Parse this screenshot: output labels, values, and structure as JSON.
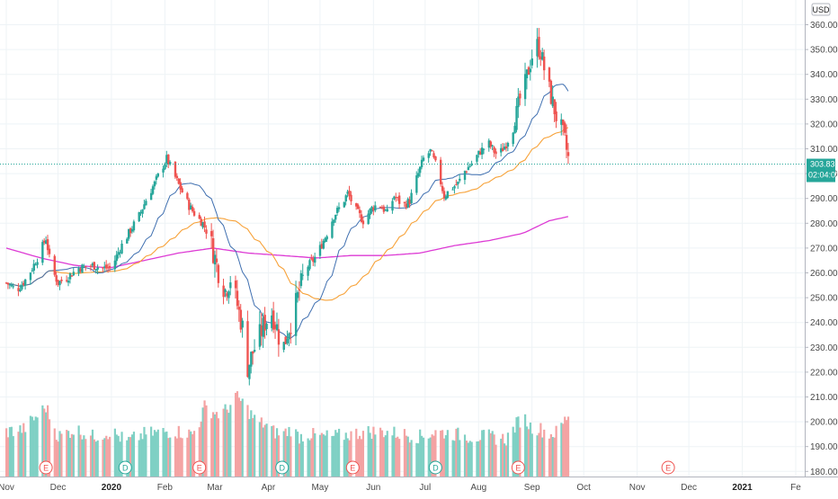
{
  "currency": "USD",
  "last_price": "303.83",
  "countdown": "02:04:01",
  "colors": {
    "up": "#26a69a",
    "down": "#ef5350",
    "vol_up": "#7fd0c4",
    "vol_down": "#f4a3a3",
    "ma_short": "#3f6fb0",
    "ma_mid": "#f7a239",
    "ma_long": "#dd3ad4",
    "grid": "#eef3f6",
    "price_tag": "#26a69a"
  },
  "chart_data": {
    "type": "candlestick",
    "y_axis": {
      "ylim": [
        178,
        364
      ],
      "ticks": [
        "360.00",
        "350.00",
        "340.00",
        "330.00",
        "320.00",
        "310.00",
        "300.00",
        "290.00",
        "280.00",
        "270.00",
        "260.00",
        "250.00",
        "240.00",
        "230.00",
        "220.00",
        "210.00",
        "200.00",
        "190.00",
        "180.00"
      ]
    },
    "x_axis": {
      "labels": [
        {
          "text": "Nov",
          "day": 0,
          "bold": false
        },
        {
          "text": "Dec",
          "day": 30,
          "bold": false
        },
        {
          "text": "2020",
          "day": 61,
          "bold": true
        },
        {
          "text": "Feb",
          "day": 92,
          "bold": false
        },
        {
          "text": "Mar",
          "day": 121,
          "bold": false
        },
        {
          "text": "Apr",
          "day": 152,
          "bold": false
        },
        {
          "text": "May",
          "day": 182,
          "bold": false
        },
        {
          "text": "Jun",
          "day": 213,
          "bold": false
        },
        {
          "text": "Jul",
          "day": 243,
          "bold": false
        },
        {
          "text": "Aug",
          "day": 274,
          "bold": false
        },
        {
          "text": "Sep",
          "day": 305,
          "bold": false
        },
        {
          "text": "Oct",
          "day": 335,
          "bold": false
        },
        {
          "text": "Nov",
          "day": 366,
          "bold": false
        },
        {
          "text": "Dec",
          "day": 396,
          "bold": false
        },
        {
          "text": "2021",
          "day": 427,
          "bold": true
        },
        {
          "text": "Fe",
          "day": 458,
          "bold": false
        }
      ]
    },
    "events": [
      {
        "label": "E",
        "day": 23,
        "type": "earnings"
      },
      {
        "label": "D",
        "day": 69,
        "type": "dividend"
      },
      {
        "label": "E",
        "day": 112,
        "type": "earnings"
      },
      {
        "label": "D",
        "day": 160,
        "type": "dividend"
      },
      {
        "label": "E",
        "day": 201,
        "type": "earnings"
      },
      {
        "label": "D",
        "day": 249,
        "type": "dividend"
      },
      {
        "label": "E",
        "day": 297,
        "type": "earnings"
      },
      {
        "label": "E",
        "day": 384,
        "type": "earnings"
      }
    ],
    "price_anchors": [
      [
        0,
        256
      ],
      [
        6,
        253
      ],
      [
        12,
        258
      ],
      [
        18,
        266
      ],
      [
        23,
        274
      ],
      [
        26,
        262
      ],
      [
        30,
        256
      ],
      [
        35,
        258
      ],
      [
        42,
        262
      ],
      [
        50,
        263
      ],
      [
        56,
        262
      ],
      [
        61,
        262
      ],
      [
        66,
        270
      ],
      [
        71,
        276
      ],
      [
        77,
        283
      ],
      [
        82,
        291
      ],
      [
        86,
        296
      ],
      [
        90,
        302
      ],
      [
        93,
        306
      ],
      [
        97,
        300
      ],
      [
        101,
        294
      ],
      [
        106,
        287
      ],
      [
        110,
        283
      ],
      [
        114,
        280
      ],
      [
        118,
        274
      ],
      [
        121,
        266
      ],
      [
        124,
        258
      ],
      [
        127,
        253
      ],
      [
        130,
        258
      ],
      [
        133,
        250
      ],
      [
        137,
        238
      ],
      [
        140,
        222
      ],
      [
        143,
        228
      ],
      [
        146,
        233
      ],
      [
        150,
        240
      ],
      [
        154,
        244
      ],
      [
        157,
        238
      ],
      [
        160,
        228
      ],
      [
        163,
        236
      ],
      [
        166,
        242
      ],
      [
        170,
        253
      ],
      [
        174,
        262
      ],
      [
        178,
        265
      ],
      [
        182,
        270
      ],
      [
        186,
        276
      ],
      [
        190,
        283
      ],
      [
        194,
        287
      ],
      [
        198,
        292
      ],
      [
        203,
        285
      ],
      [
        207,
        281
      ],
      [
        212,
        286
      ],
      [
        216,
        288
      ],
      [
        221,
        284
      ],
      [
        225,
        291
      ],
      [
        230,
        287
      ],
      [
        234,
        289
      ],
      [
        238,
        298
      ],
      [
        242,
        306
      ],
      [
        246,
        309
      ],
      [
        250,
        302
      ],
      [
        254,
        291
      ],
      [
        258,
        294
      ],
      [
        262,
        296
      ],
      [
        266,
        301
      ],
      [
        271,
        305
      ],
      [
        275,
        309
      ],
      [
        280,
        312
      ],
      [
        285,
        307
      ],
      [
        290,
        312
      ],
      [
        294,
        318
      ],
      [
        298,
        330
      ],
      [
        301,
        336
      ],
      [
        304,
        345
      ],
      [
        307,
        353
      ],
      [
        310,
        349
      ],
      [
        313,
        339
      ],
      [
        316,
        331
      ],
      [
        319,
        323
      ],
      [
        322,
        318
      ],
      [
        324,
        313
      ],
      [
        326,
        306
      ],
      [
        328,
        303.83
      ]
    ],
    "volume_anchors": [
      [
        0,
        196
      ],
      [
        10,
        197
      ],
      [
        23,
        206
      ],
      [
        30,
        194
      ],
      [
        40,
        197
      ],
      [
        50,
        194
      ],
      [
        61,
        196
      ],
      [
        70,
        192
      ],
      [
        80,
        195
      ],
      [
        92,
        196
      ],
      [
        100,
        196
      ],
      [
        108,
        195
      ],
      [
        112,
        200
      ],
      [
        115,
        206
      ],
      [
        120,
        204
      ],
      [
        124,
        203
      ],
      [
        128,
        205
      ],
      [
        133,
        210
      ],
      [
        137,
        208
      ],
      [
        140,
        205
      ],
      [
        145,
        200
      ],
      [
        150,
        199
      ],
      [
        155,
        196
      ],
      [
        160,
        195
      ],
      [
        165,
        197
      ],
      [
        170,
        194
      ],
      [
        175,
        195
      ],
      [
        182,
        194
      ],
      [
        190,
        194
      ],
      [
        200,
        195
      ],
      [
        210,
        196
      ],
      [
        220,
        196
      ],
      [
        230,
        195
      ],
      [
        240,
        194
      ],
      [
        250,
        196
      ],
      [
        260,
        195
      ],
      [
        270,
        194
      ],
      [
        280,
        194
      ],
      [
        290,
        193
      ],
      [
        297,
        200
      ],
      [
        300,
        202
      ],
      [
        304,
        198
      ],
      [
        310,
        197
      ],
      [
        316,
        195
      ],
      [
        320,
        196
      ],
      [
        326,
        203
      ],
      [
        328,
        199
      ]
    ],
    "ma_short_len": 20,
    "ma_mid_len": 50,
    "ma_long_len": 200,
    "ma_long_anchors": [
      [
        0,
        270
      ],
      [
        20,
        266
      ],
      [
        40,
        263
      ],
      [
        60,
        262
      ],
      [
        80,
        265
      ],
      [
        100,
        268
      ],
      [
        120,
        270
      ],
      [
        140,
        268
      ],
      [
        160,
        267
      ],
      [
        180,
        266
      ],
      [
        200,
        267
      ],
      [
        220,
        267
      ],
      [
        240,
        268
      ],
      [
        260,
        271
      ],
      [
        280,
        273
      ],
      [
        300,
        276
      ],
      [
        315,
        281
      ],
      [
        328,
        283
      ]
    ]
  }
}
